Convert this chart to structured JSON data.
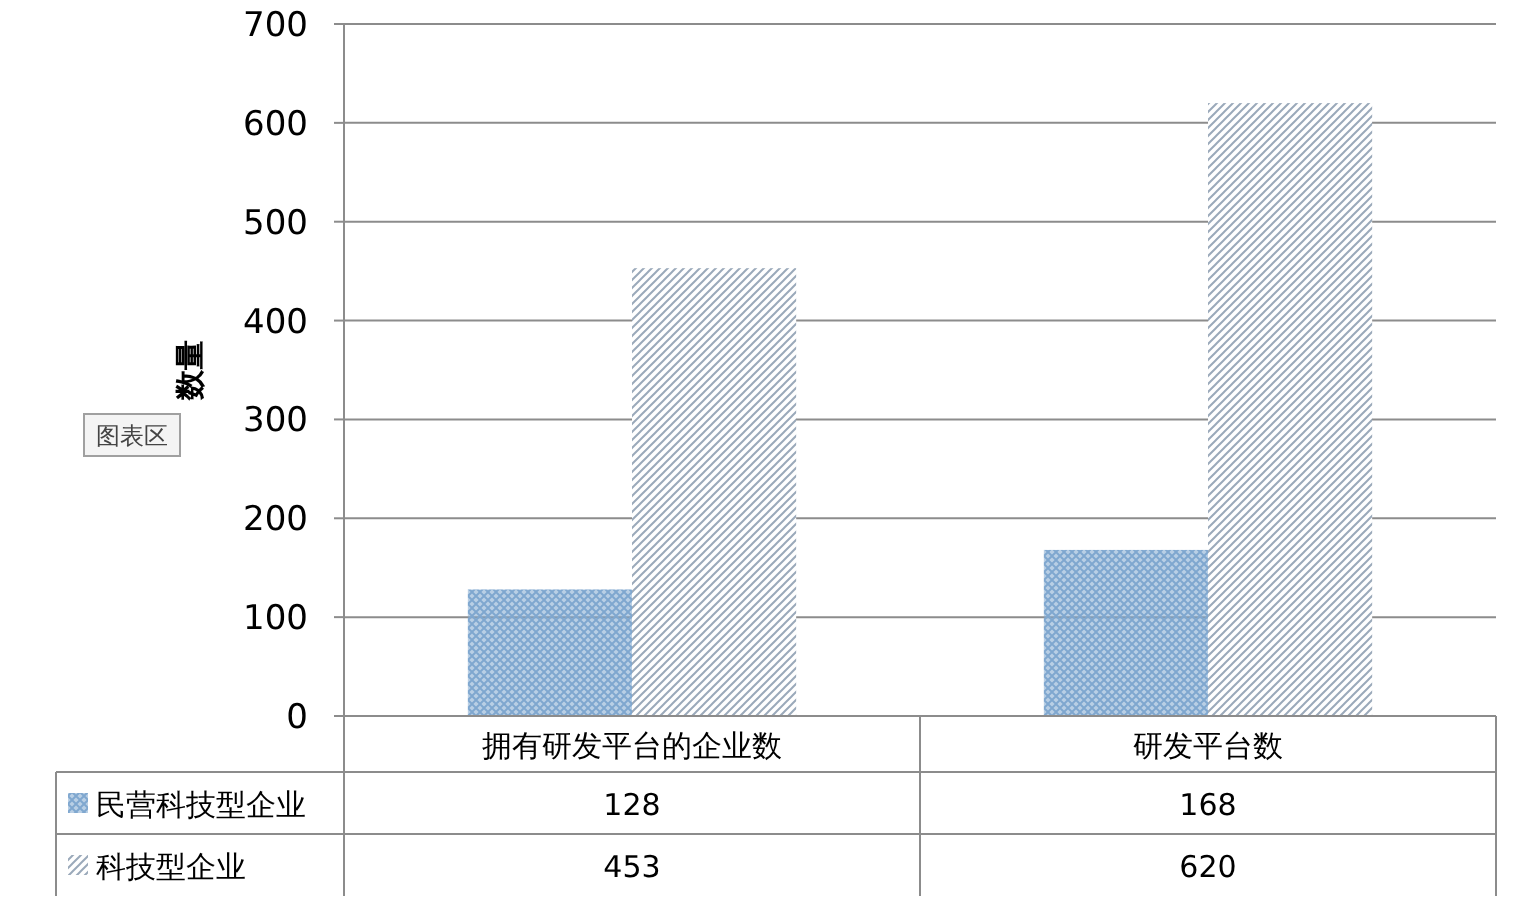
{
  "chart_data": {
    "type": "bar",
    "ylabel": "数量",
    "categories": [
      "拥有研发平台的企业数",
      "研发平台数"
    ],
    "series": [
      {
        "name": "民营科技型企业",
        "color": "#7fa7cf",
        "values": [
          128,
          168
        ]
      },
      {
        "name": "科技型企业",
        "color": "#9aa9ba",
        "values": [
          453,
          620
        ]
      }
    ],
    "ylim": [
      0,
      700
    ],
    "yticks": [
      0,
      100,
      200,
      300,
      400,
      500,
      600,
      700
    ],
    "grid": "y",
    "data_labels": true,
    "legend": "bottom",
    "annotations": [
      "图表区"
    ]
  }
}
